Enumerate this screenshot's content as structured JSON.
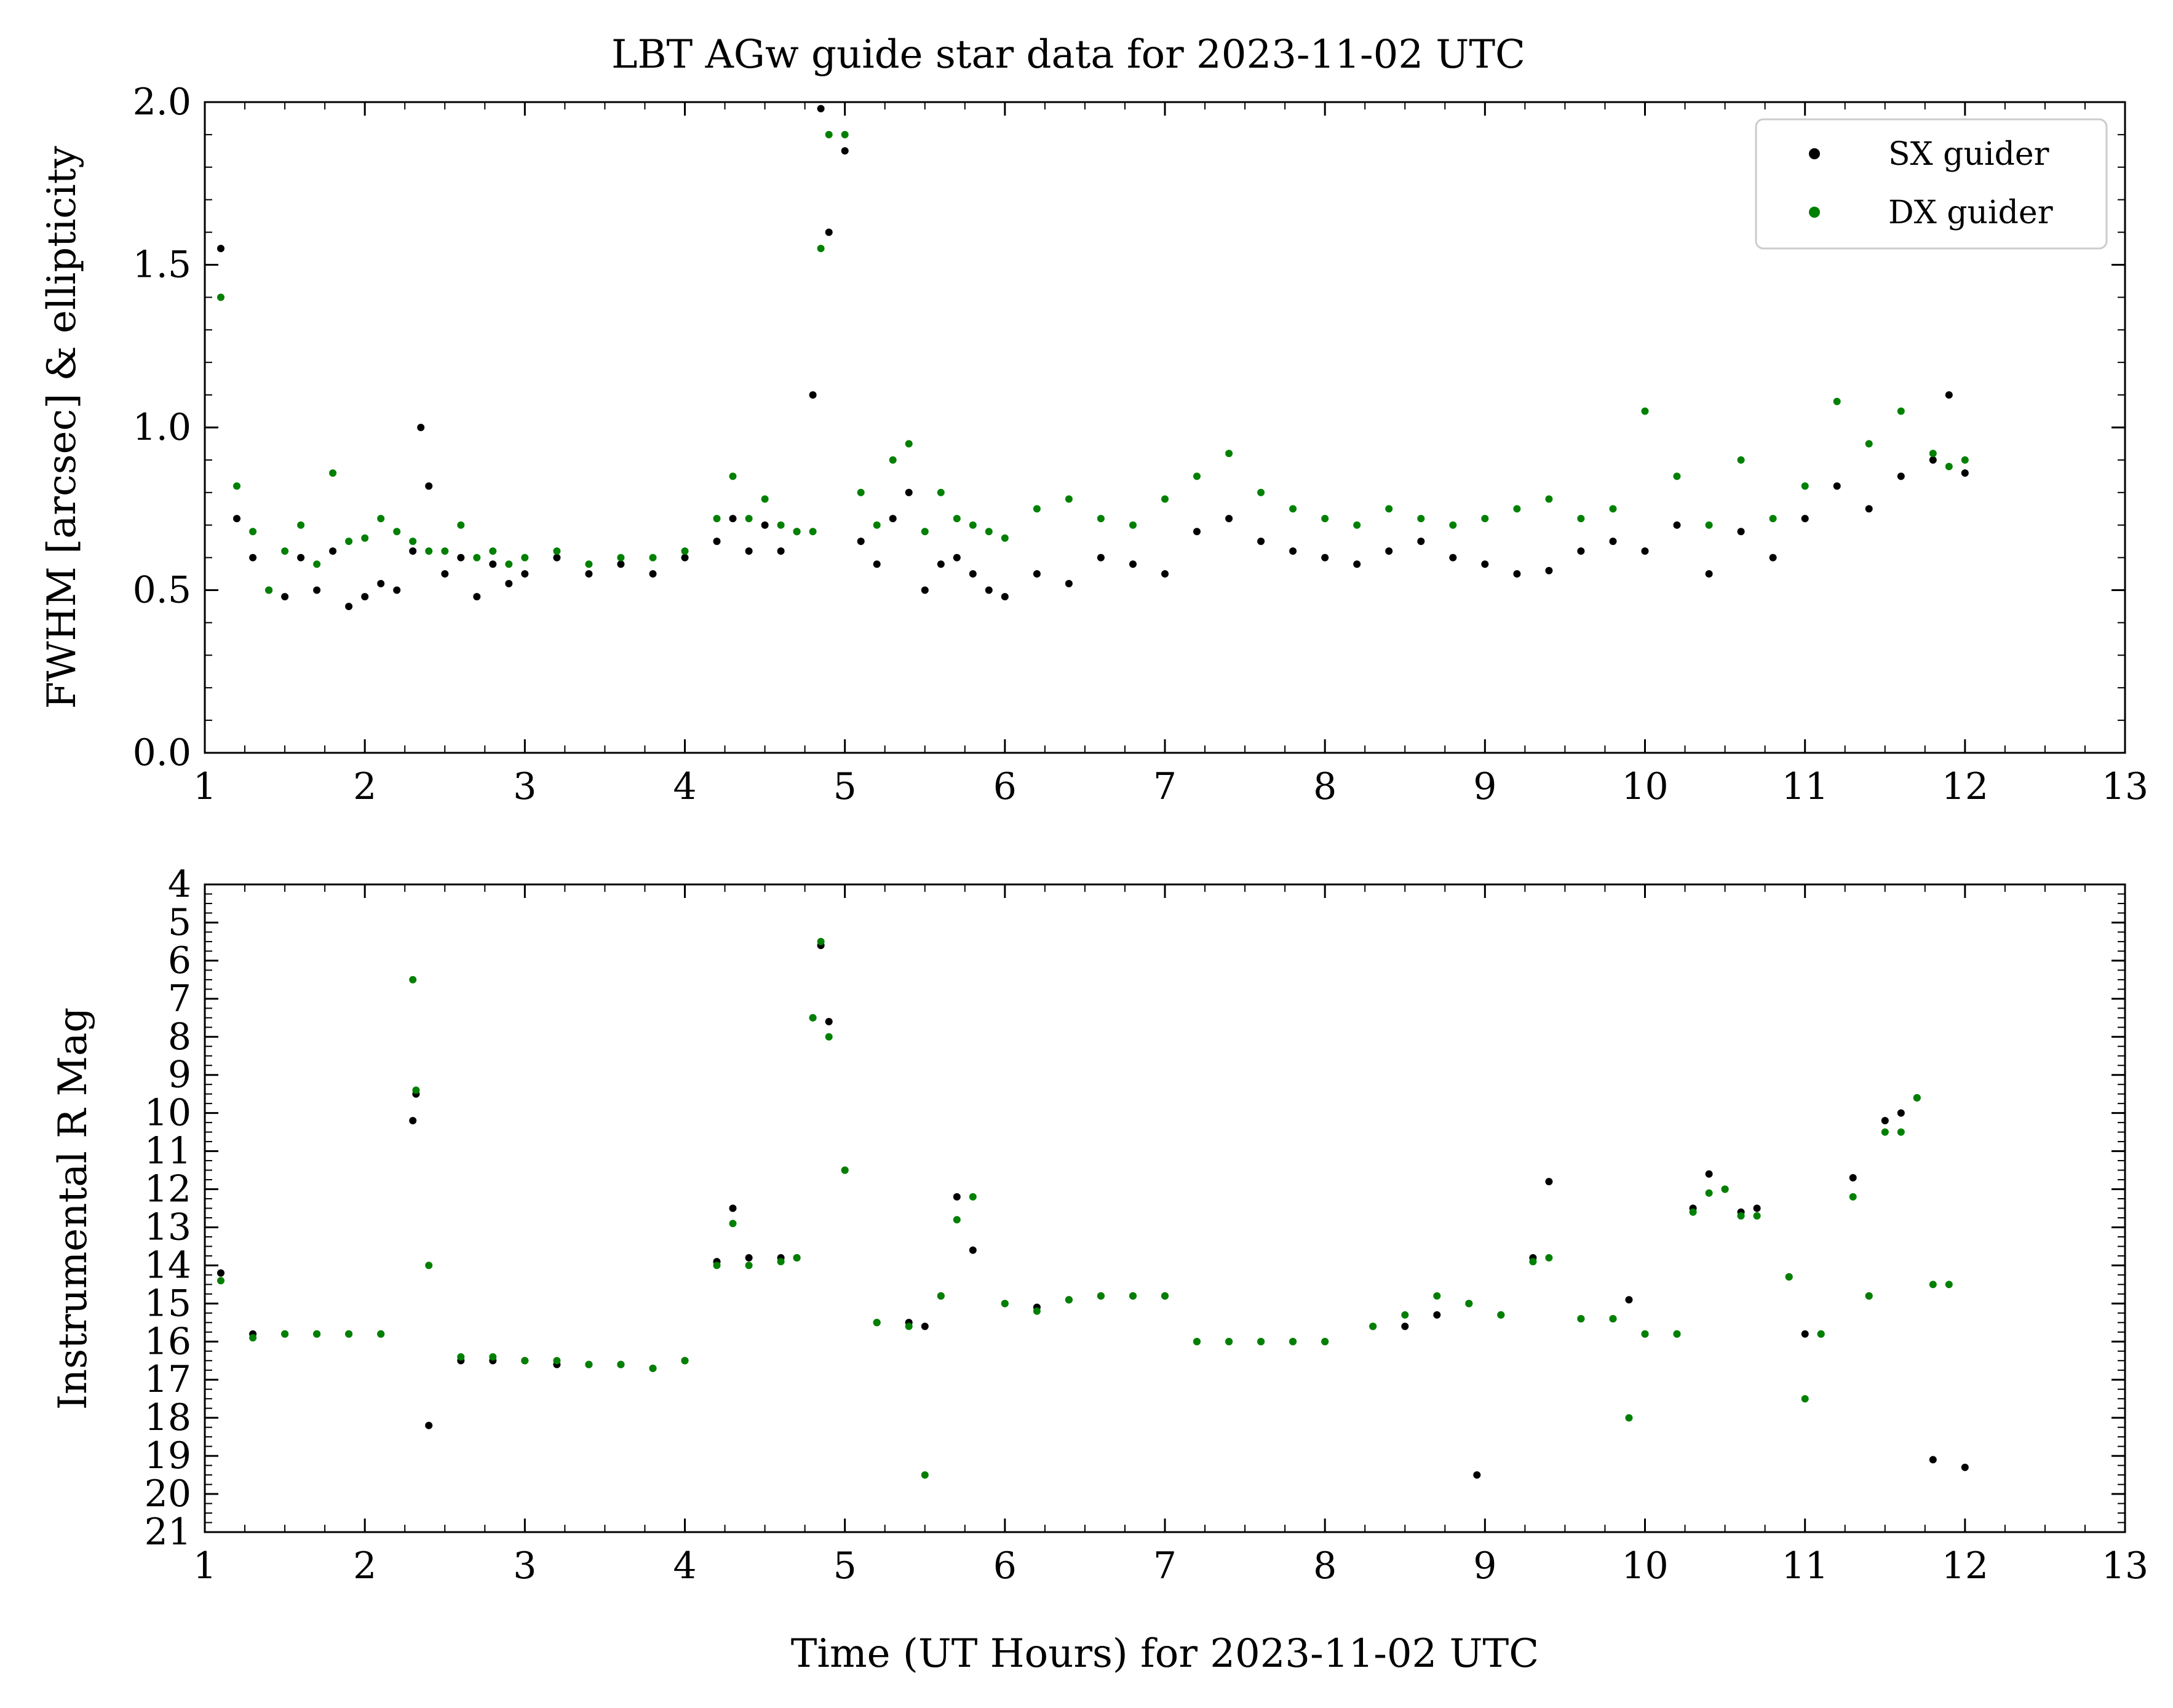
{
  "figure": {
    "title": "LBT AGw guide star data for 2023-11-02 UTC"
  },
  "colors": {
    "sx": "#000000",
    "dx": "#008000"
  },
  "legend": [
    {
      "label": "SX guider",
      "color": "#000000"
    },
    {
      "label": "DX guider",
      "color": "#008000"
    }
  ],
  "chart_data": [
    {
      "type": "scatter",
      "panel": "top",
      "title": "LBT AGw guide star data for 2023-11-02 UTC",
      "xlabel": "",
      "ylabel": "FWHM [arcsec] & ellipticity",
      "xlim": [
        1,
        13
      ],
      "ylim": [
        0.0,
        2.0
      ],
      "xticks": [
        "1",
        "2",
        "3",
        "4",
        "5",
        "6",
        "7",
        "8",
        "9",
        "10",
        "11",
        "12",
        "13"
      ],
      "yticks": [
        "0.0",
        "0.5",
        "1.0",
        "1.5",
        "2.0"
      ],
      "legend_position": "top-right",
      "grid": false,
      "series": [
        {
          "name": "SX guider",
          "color": "#000000",
          "x": [
            1.1,
            1.2,
            1.3,
            1.4,
            1.5,
            1.6,
            1.7,
            1.8,
            1.9,
            2.0,
            2.1,
            2.2,
            2.3,
            2.35,
            2.4,
            2.5,
            2.6,
            2.7,
            2.8,
            2.9,
            3.0,
            3.2,
            3.4,
            3.6,
            3.8,
            4.0,
            4.2,
            4.3,
            4.4,
            4.5,
            4.6,
            4.7,
            4.8,
            4.85,
            4.9,
            5.0,
            5.1,
            5.2,
            5.3,
            5.4,
            5.5,
            5.6,
            5.7,
            5.8,
            5.9,
            6.0,
            6.2,
            6.4,
            6.6,
            6.8,
            7.0,
            7.2,
            7.4,
            7.6,
            7.8,
            8.0,
            8.2,
            8.4,
            8.6,
            8.8,
            9.0,
            9.2,
            9.4,
            9.6,
            9.8,
            10.0,
            10.2,
            10.4,
            10.6,
            10.8,
            11.0,
            11.2,
            11.4,
            11.6,
            11.8,
            11.9,
            12.0
          ],
          "y": [
            1.55,
            0.72,
            0.6,
            0.5,
            0.48,
            0.6,
            0.5,
            0.62,
            0.45,
            0.48,
            0.52,
            0.5,
            0.62,
            1.0,
            0.82,
            0.55,
            0.6,
            0.48,
            0.58,
            0.52,
            0.55,
            0.6,
            0.55,
            0.58,
            0.55,
            0.6,
            0.65,
            0.72,
            0.62,
            0.7,
            0.62,
            0.68,
            1.1,
            1.98,
            1.6,
            1.85,
            0.65,
            0.58,
            0.72,
            0.8,
            0.5,
            0.58,
            0.6,
            0.55,
            0.5,
            0.48,
            0.55,
            0.52,
            0.6,
            0.58,
            0.55,
            0.68,
            0.72,
            0.65,
            0.62,
            0.6,
            0.58,
            0.62,
            0.65,
            0.6,
            0.58,
            0.55,
            0.56,
            0.62,
            0.65,
            0.62,
            0.7,
            0.55,
            0.68,
            0.6,
            0.72,
            0.82,
            0.75,
            0.85,
            0.9,
            1.1,
            0.86
          ]
        },
        {
          "name": "DX guider",
          "color": "#008000",
          "x": [
            1.1,
            1.2,
            1.3,
            1.4,
            1.5,
            1.6,
            1.7,
            1.8,
            1.9,
            2.0,
            2.1,
            2.2,
            2.3,
            2.4,
            2.5,
            2.6,
            2.7,
            2.8,
            2.9,
            3.0,
            3.2,
            3.4,
            3.6,
            3.8,
            4.0,
            4.2,
            4.3,
            4.4,
            4.5,
            4.6,
            4.7,
            4.8,
            4.85,
            4.9,
            5.0,
            5.1,
            5.2,
            5.3,
            5.4,
            5.5,
            5.6,
            5.7,
            5.8,
            5.9,
            6.0,
            6.2,
            6.4,
            6.6,
            6.8,
            7.0,
            7.2,
            7.4,
            7.6,
            7.8,
            8.0,
            8.2,
            8.4,
            8.6,
            8.8,
            9.0,
            9.2,
            9.4,
            9.6,
            9.8,
            10.0,
            10.2,
            10.4,
            10.6,
            10.8,
            11.0,
            11.2,
            11.4,
            11.6,
            11.8,
            11.9,
            12.0
          ],
          "y": [
            1.4,
            0.82,
            0.68,
            0.5,
            0.62,
            0.7,
            0.58,
            0.86,
            0.65,
            0.66,
            0.72,
            0.68,
            0.65,
            0.62,
            0.62,
            0.7,
            0.6,
            0.62,
            0.58,
            0.6,
            0.62,
            0.58,
            0.6,
            0.6,
            0.62,
            0.72,
            0.85,
            0.72,
            0.78,
            0.7,
            0.68,
            0.68,
            1.55,
            1.9,
            1.9,
            0.8,
            0.7,
            0.9,
            0.95,
            0.68,
            0.8,
            0.72,
            0.7,
            0.68,
            0.66,
            0.75,
            0.78,
            0.72,
            0.7,
            0.78,
            0.85,
            0.92,
            0.8,
            0.75,
            0.72,
            0.7,
            0.75,
            0.72,
            0.7,
            0.72,
            0.75,
            0.78,
            0.72,
            0.75,
            1.05,
            0.85,
            0.7,
            0.9,
            0.72,
            0.82,
            1.08,
            0.95,
            1.05,
            0.92,
            0.88,
            0.9
          ]
        }
      ]
    },
    {
      "type": "scatter",
      "panel": "bottom",
      "title": "",
      "xlabel": "Time (UT Hours) for 2023-11-02 UTC",
      "ylabel": "Instrumental R Mag",
      "xlim": [
        1,
        13
      ],
      "ylim": [
        21,
        4
      ],
      "y_inverted": true,
      "xticks": [
        "1",
        "2",
        "3",
        "4",
        "5",
        "6",
        "7",
        "8",
        "9",
        "10",
        "11",
        "12",
        "13"
      ],
      "yticks": [
        "4",
        "5",
        "6",
        "7",
        "8",
        "9",
        "10",
        "11",
        "12",
        "13",
        "14",
        "15",
        "16",
        "17",
        "18",
        "19",
        "20",
        "21"
      ],
      "grid": false,
      "series": [
        {
          "name": "SX guider",
          "color": "#000000",
          "x": [
            1.1,
            1.3,
            1.5,
            1.7,
            1.9,
            2.1,
            2.3,
            2.32,
            2.4,
            2.6,
            2.8,
            3.0,
            3.2,
            3.4,
            3.6,
            3.8,
            4.0,
            4.2,
            4.3,
            4.4,
            4.6,
            4.7,
            4.8,
            4.85,
            4.9,
            5.0,
            5.2,
            5.4,
            5.5,
            5.6,
            5.7,
            5.8,
            6.0,
            6.2,
            6.4,
            6.6,
            6.8,
            7.0,
            7.2,
            7.4,
            7.6,
            7.8,
            8.0,
            8.3,
            8.5,
            8.7,
            8.9,
            8.95,
            9.1,
            9.3,
            9.4,
            9.6,
            9.8,
            9.9,
            10.0,
            10.2,
            10.3,
            10.4,
            10.5,
            10.6,
            10.7,
            10.9,
            11.0,
            11.1,
            11.3,
            11.4,
            11.5,
            11.6,
            11.7,
            11.8,
            12.0
          ],
          "y": [
            14.2,
            15.8,
            15.8,
            15.8,
            15.8,
            15.8,
            10.2,
            9.5,
            18.2,
            16.5,
            16.5,
            16.5,
            16.6,
            16.6,
            16.6,
            16.7,
            16.5,
            13.9,
            12.5,
            13.8,
            13.8,
            13.8,
            7.5,
            5.6,
            7.6,
            11.5,
            15.5,
            15.5,
            15.6,
            14.8,
            12.2,
            13.6,
            15.0,
            15.1,
            14.9,
            14.8,
            14.8,
            14.8,
            16.0,
            16.0,
            16.0,
            16.0,
            16.0,
            15.6,
            15.6,
            15.3,
            15.0,
            19.5,
            15.3,
            13.8,
            11.8,
            15.4,
            15.4,
            14.9,
            15.8,
            15.8,
            12.5,
            11.6,
            12.0,
            12.6,
            12.5,
            14.3,
            15.8,
            15.8,
            11.7,
            14.8,
            10.2,
            10.0,
            9.6,
            19.1,
            19.3
          ]
        },
        {
          "name": "DX guider",
          "color": "#008000",
          "x": [
            1.1,
            1.3,
            1.5,
            1.7,
            1.9,
            2.1,
            2.3,
            2.32,
            2.4,
            2.6,
            2.8,
            3.0,
            3.2,
            3.4,
            3.6,
            3.8,
            4.0,
            4.2,
            4.3,
            4.4,
            4.6,
            4.7,
            4.8,
            4.85,
            4.9,
            5.0,
            5.2,
            5.4,
            5.5,
            5.6,
            5.7,
            5.8,
            6.0,
            6.2,
            6.4,
            6.6,
            6.8,
            7.0,
            7.2,
            7.4,
            7.6,
            7.8,
            8.0,
            8.3,
            8.5,
            8.7,
            8.9,
            9.1,
            9.3,
            9.4,
            9.6,
            9.8,
            9.9,
            10.0,
            10.2,
            10.3,
            10.4,
            10.5,
            10.6,
            10.7,
            10.9,
            11.0,
            11.1,
            11.3,
            11.4,
            11.5,
            11.6,
            11.7,
            11.8,
            11.9
          ],
          "y": [
            14.4,
            15.9,
            15.8,
            15.8,
            15.8,
            15.8,
            6.5,
            9.4,
            14.0,
            16.4,
            16.4,
            16.5,
            16.5,
            16.6,
            16.6,
            16.7,
            16.5,
            14.0,
            12.9,
            14.0,
            13.9,
            13.8,
            7.5,
            5.5,
            8.0,
            11.5,
            15.5,
            15.6,
            19.5,
            14.8,
            12.8,
            12.2,
            15.0,
            15.2,
            14.9,
            14.8,
            14.8,
            14.8,
            16.0,
            16.0,
            16.0,
            16.0,
            16.0,
            15.6,
            15.3,
            14.8,
            15.0,
            15.3,
            13.9,
            13.8,
            15.4,
            15.4,
            18.0,
            15.8,
            15.8,
            12.6,
            12.1,
            12.0,
            12.7,
            12.7,
            14.3,
            17.5,
            15.8,
            12.2,
            14.8,
            10.5,
            10.5,
            9.6,
            14.5,
            14.5
          ]
        }
      ]
    }
  ]
}
